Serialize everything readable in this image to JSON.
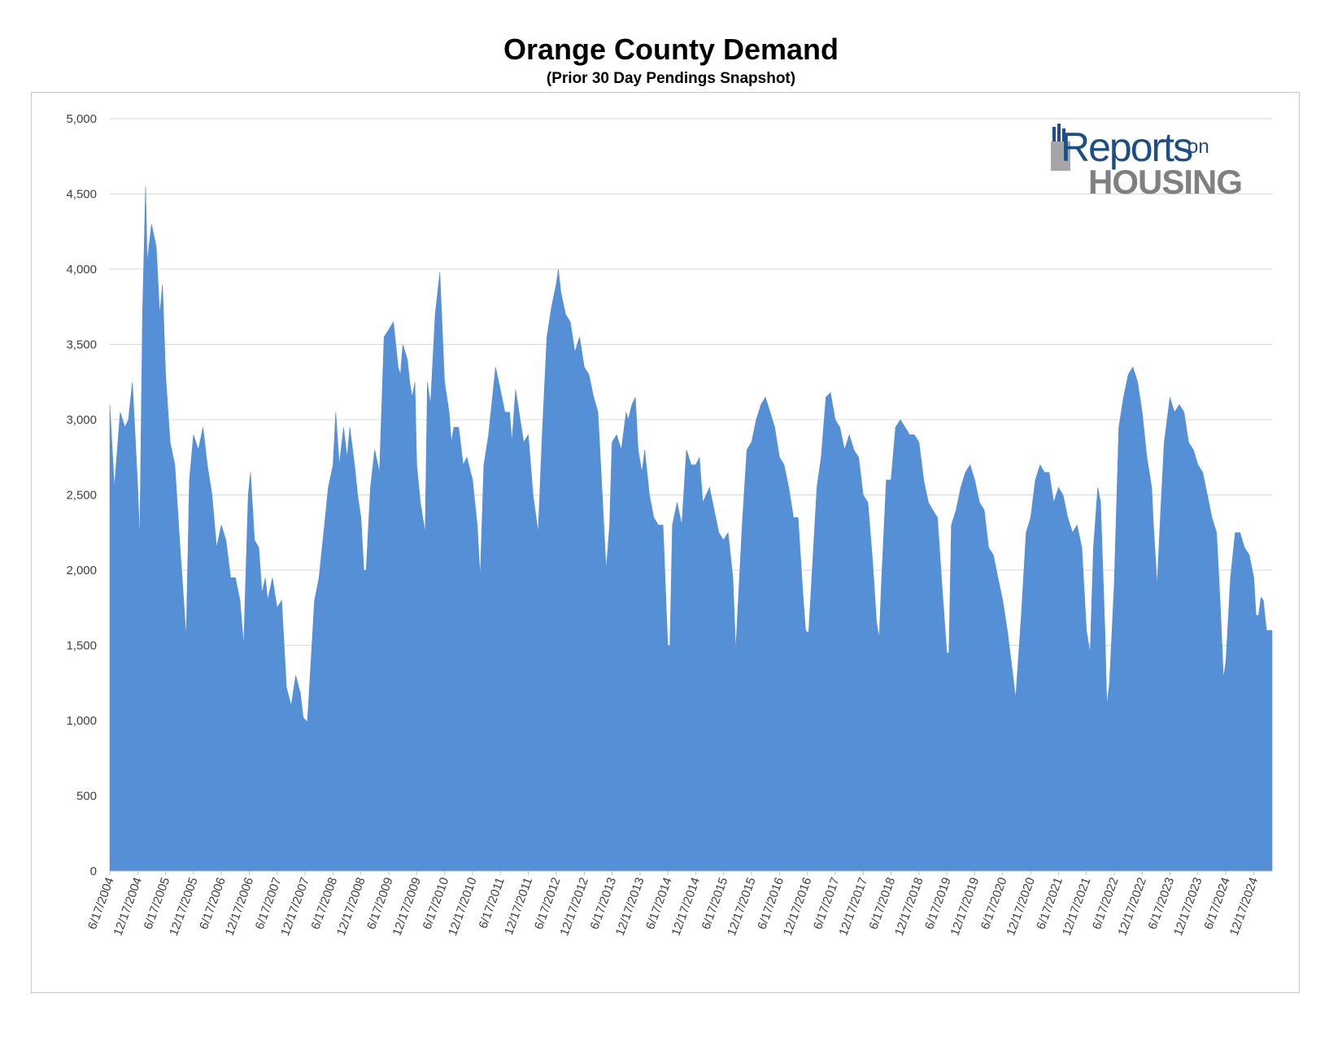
{
  "chart_data": {
    "type": "area",
    "title": "Orange County Demand",
    "subtitle": "(Prior 30 Day Pendings Snapshot)",
    "ylim": [
      0,
      5000
    ],
    "y_ticks": [
      0,
      500,
      1000,
      1500,
      2000,
      2500,
      3000,
      3500,
      4000,
      4500,
      5000
    ],
    "y_tick_labels": [
      "0",
      "500",
      "1,000",
      "1,500",
      "2,000",
      "2,500",
      "3,000",
      "3,500",
      "4,000",
      "4,500",
      "5,000"
    ],
    "x_tick_labels": [
      "6/17/2004",
      "12/17/2004",
      "6/17/2005",
      "12/17/2005",
      "6/17/2006",
      "12/17/2006",
      "6/17/2007",
      "12/17/2007",
      "6/17/2008",
      "12/17/2008",
      "6/17/2009",
      "12/17/2009",
      "6/17/2010",
      "12/17/2010",
      "6/17/2011",
      "12/17/2011",
      "6/17/2012",
      "12/17/2012",
      "6/17/2013",
      "12/17/2013",
      "6/17/2014",
      "12/17/2014",
      "6/17/2015",
      "12/17/2015",
      "6/17/2016",
      "12/17/2016",
      "6/17/2017",
      "12/17/2017",
      "6/17/2018",
      "12/17/2018",
      "6/17/2019",
      "12/17/2019",
      "6/17/2020",
      "12/17/2020",
      "6/17/2021",
      "12/17/2021",
      "6/17/2022",
      "12/17/2022",
      "6/17/2023",
      "12/17/2023",
      "6/17/2024",
      "12/17/2024"
    ],
    "x_start": "2004-06-17",
    "x_end": "2025-04-15",
    "grid": true,
    "fill_color": "#5590d6",
    "points": [
      [
        "2004-06-17",
        3100
      ],
      [
        "2004-07-17",
        2550
      ],
      [
        "2004-08-24",
        3050
      ],
      [
        "2004-09-24",
        2950
      ],
      [
        "2004-10-17",
        3000
      ],
      [
        "2004-11-12",
        3250
      ],
      [
        "2004-12-17",
        2550
      ],
      [
        "2004-12-30",
        2200
      ],
      [
        "2005-01-17",
        3700
      ],
      [
        "2005-02-06",
        4550
      ],
      [
        "2005-02-17",
        4050
      ],
      [
        "2005-03-17",
        4300
      ],
      [
        "2005-04-17",
        4150
      ],
      [
        "2005-05-10",
        3700
      ],
      [
        "2005-05-28",
        3900
      ],
      [
        "2005-06-17",
        3300
      ],
      [
        "2005-07-17",
        2850
      ],
      [
        "2005-08-17",
        2700
      ],
      [
        "2005-09-17",
        2200
      ],
      [
        "2005-10-17",
        1750
      ],
      [
        "2005-10-30",
        1550
      ],
      [
        "2005-11-20",
        2600
      ],
      [
        "2005-12-17",
        2900
      ],
      [
        "2006-01-17",
        2800
      ],
      [
        "2006-02-17",
        2950
      ],
      [
        "2006-03-17",
        2700
      ],
      [
        "2006-04-17",
        2500
      ],
      [
        "2006-05-17",
        2150
      ],
      [
        "2006-06-17",
        2300
      ],
      [
        "2006-07-17",
        2200
      ],
      [
        "2006-08-17",
        1950
      ],
      [
        "2006-09-17",
        1950
      ],
      [
        "2006-10-17",
        1800
      ],
      [
        "2006-11-10",
        1500
      ],
      [
        "2006-12-10",
        2500
      ],
      [
        "2006-12-25",
        2650
      ],
      [
        "2007-01-20",
        2200
      ],
      [
        "2007-02-17",
        2150
      ],
      [
        "2007-03-10",
        1850
      ],
      [
        "2007-04-01",
        1950
      ],
      [
        "2007-04-17",
        1800
      ],
      [
        "2007-05-17",
        1950
      ],
      [
        "2007-06-17",
        1750
      ],
      [
        "2007-07-17",
        1800
      ],
      [
        "2007-08-17",
        1220
      ],
      [
        "2007-09-17",
        1100
      ],
      [
        "2007-10-17",
        1300
      ],
      [
        "2007-11-17",
        1180
      ],
      [
        "2007-12-05",
        1020
      ],
      [
        "2008-01-01",
        990
      ],
      [
        "2008-01-25",
        1400
      ],
      [
        "2008-02-17",
        1800
      ],
      [
        "2008-03-17",
        1950
      ],
      [
        "2008-04-17",
        2250
      ],
      [
        "2008-05-17",
        2550
      ],
      [
        "2008-06-17",
        2700
      ],
      [
        "2008-07-05",
        3050
      ],
      [
        "2008-07-28",
        2700
      ],
      [
        "2008-08-25",
        2950
      ],
      [
        "2008-09-17",
        2750
      ],
      [
        "2008-10-05",
        2950
      ],
      [
        "2008-11-05",
        2700
      ],
      [
        "2008-11-25",
        2500
      ],
      [
        "2008-12-17",
        2350
      ],
      [
        "2009-01-05",
        2000
      ],
      [
        "2009-01-20",
        2000
      ],
      [
        "2009-02-17",
        2550
      ],
      [
        "2009-03-17",
        2800
      ],
      [
        "2009-04-17",
        2650
      ],
      [
        "2009-05-17",
        3550
      ],
      [
        "2009-06-17",
        3600
      ],
      [
        "2009-07-17",
        3650
      ],
      [
        "2009-08-17",
        3350
      ],
      [
        "2009-09-01",
        3300
      ],
      [
        "2009-09-17",
        3500
      ],
      [
        "2009-10-17",
        3400
      ],
      [
        "2009-11-01",
        3250
      ],
      [
        "2009-11-17",
        3150
      ],
      [
        "2009-12-05",
        3250
      ],
      [
        "2009-12-17",
        2700
      ],
      [
        "2010-01-10",
        2450
      ],
      [
        "2010-02-10",
        2250
      ],
      [
        "2010-02-25",
        3250
      ],
      [
        "2010-03-17",
        3100
      ],
      [
        "2010-04-17",
        3700
      ],
      [
        "2010-05-17",
        3980
      ],
      [
        "2010-06-17",
        3250
      ],
      [
        "2010-07-17",
        3050
      ],
      [
        "2010-08-01",
        2850
      ],
      [
        "2010-08-17",
        2950
      ],
      [
        "2010-09-17",
        2950
      ],
      [
        "2010-10-17",
        2700
      ],
      [
        "2010-11-10",
        2750
      ],
      [
        "2010-12-05",
        2650
      ],
      [
        "2010-12-17",
        2600
      ],
      [
        "2011-01-17",
        2300
      ],
      [
        "2011-02-05",
        1950
      ],
      [
        "2011-03-01",
        2700
      ],
      [
        "2011-04-01",
        2900
      ],
      [
        "2011-05-17",
        3350
      ],
      [
        "2011-06-17",
        3200
      ],
      [
        "2011-07-17",
        3050
      ],
      [
        "2011-08-17",
        3050
      ],
      [
        "2011-09-01",
        2850
      ],
      [
        "2011-09-25",
        3200
      ],
      [
        "2011-10-25",
        3000
      ],
      [
        "2011-11-17",
        2850
      ],
      [
        "2011-12-17",
        2900
      ],
      [
        "2012-01-17",
        2500
      ],
      [
        "2012-02-20",
        2250
      ],
      [
        "2012-03-17",
        2900
      ],
      [
        "2012-04-17",
        3550
      ],
      [
        "2012-05-17",
        3750
      ],
      [
        "2012-06-17",
        3900
      ],
      [
        "2012-07-01",
        4000
      ],
      [
        "2012-07-17",
        3850
      ],
      [
        "2012-08-17",
        3700
      ],
      [
        "2012-09-17",
        3650
      ],
      [
        "2012-10-17",
        3450
      ],
      [
        "2012-11-17",
        3550
      ],
      [
        "2012-12-17",
        3350
      ],
      [
        "2013-01-17",
        3300
      ],
      [
        "2013-02-17",
        3150
      ],
      [
        "2013-03-17",
        3050
      ],
      [
        "2013-04-17",
        2450
      ],
      [
        "2013-05-10",
        2000
      ],
      [
        "2013-06-01",
        2300
      ],
      [
        "2013-06-17",
        2850
      ],
      [
        "2013-07-17",
        2900
      ],
      [
        "2013-08-17",
        2800
      ],
      [
        "2013-09-17",
        3050
      ],
      [
        "2013-10-01",
        3000
      ],
      [
        "2013-10-25",
        3100
      ],
      [
        "2013-11-17",
        3150
      ],
      [
        "2013-12-05",
        2800
      ],
      [
        "2013-12-30",
        2650
      ],
      [
        "2014-01-17",
        2800
      ],
      [
        "2014-02-17",
        2500
      ],
      [
        "2014-03-17",
        2350
      ],
      [
        "2014-04-17",
        2300
      ],
      [
        "2014-05-17",
        2300
      ],
      [
        "2014-06-17",
        1500
      ],
      [
        "2014-07-01",
        1500
      ],
      [
        "2014-07-17",
        2300
      ],
      [
        "2014-08-17",
        2450
      ],
      [
        "2014-09-17",
        2300
      ],
      [
        "2014-10-17",
        2800
      ],
      [
        "2014-11-17",
        2700
      ],
      [
        "2014-12-17",
        2700
      ],
      [
        "2015-01-10",
        2750
      ],
      [
        "2015-02-01",
        2450
      ],
      [
        "2015-03-17",
        2550
      ],
      [
        "2015-04-17",
        2400
      ],
      [
        "2015-05-17",
        2250
      ],
      [
        "2015-06-17",
        2200
      ],
      [
        "2015-07-17",
        2250
      ],
      [
        "2015-08-17",
        1950
      ],
      [
        "2015-09-05",
        1470
      ],
      [
        "2015-10-17",
        2300
      ],
      [
        "2015-11-17",
        2800
      ],
      [
        "2015-12-17",
        2850
      ],
      [
        "2016-01-17",
        3000
      ],
      [
        "2016-02-17",
        3100
      ],
      [
        "2016-03-17",
        3150
      ],
      [
        "2016-04-17",
        3050
      ],
      [
        "2016-05-17",
        2950
      ],
      [
        "2016-06-17",
        2750
      ],
      [
        "2016-07-17",
        2700
      ],
      [
        "2016-08-17",
        2550
      ],
      [
        "2016-09-17",
        2350
      ],
      [
        "2016-10-17",
        2350
      ],
      [
        "2016-11-17",
        1850
      ],
      [
        "2016-12-05",
        1600
      ],
      [
        "2016-12-25",
        1580
      ],
      [
        "2017-01-17",
        2000
      ],
      [
        "2017-02-17",
        2550
      ],
      [
        "2017-03-17",
        2750
      ],
      [
        "2017-04-17",
        3150
      ],
      [
        "2017-05-17",
        3180
      ],
      [
        "2017-06-17",
        3000
      ],
      [
        "2017-07-17",
        2950
      ],
      [
        "2017-08-17",
        2800
      ],
      [
        "2017-09-17",
        2900
      ],
      [
        "2017-10-17",
        2800
      ],
      [
        "2017-11-17",
        2750
      ],
      [
        "2017-12-17",
        2500
      ],
      [
        "2018-01-17",
        2450
      ],
      [
        "2018-02-17",
        2050
      ],
      [
        "2018-03-15",
        1650
      ],
      [
        "2018-04-01",
        1550
      ],
      [
        "2018-04-17",
        1950
      ],
      [
        "2018-05-17",
        2600
      ],
      [
        "2018-06-17",
        2600
      ],
      [
        "2018-07-17",
        2950
      ],
      [
        "2018-08-17",
        3000
      ],
      [
        "2018-09-17",
        2950
      ],
      [
        "2018-10-17",
        2900
      ],
      [
        "2018-11-17",
        2900
      ],
      [
        "2018-12-17",
        2850
      ],
      [
        "2019-01-17",
        2600
      ],
      [
        "2019-02-17",
        2450
      ],
      [
        "2019-03-17",
        2400
      ],
      [
        "2019-04-17",
        2350
      ],
      [
        "2019-05-17",
        1900
      ],
      [
        "2019-06-17",
        1450
      ],
      [
        "2019-07-01",
        1450
      ],
      [
        "2019-07-17",
        2300
      ],
      [
        "2019-08-17",
        2400
      ],
      [
        "2019-09-17",
        2550
      ],
      [
        "2019-10-17",
        2650
      ],
      [
        "2019-11-17",
        2700
      ],
      [
        "2019-12-17",
        2600
      ],
      [
        "2020-01-17",
        2450
      ],
      [
        "2020-02-17",
        2400
      ],
      [
        "2020-03-17",
        2150
      ],
      [
        "2020-04-17",
        2100
      ],
      [
        "2020-05-17",
        1950
      ],
      [
        "2020-06-17",
        1800
      ],
      [
        "2020-07-17",
        1600
      ],
      [
        "2020-08-17",
        1350
      ],
      [
        "2020-09-10",
        1150
      ],
      [
        "2020-10-17",
        1700
      ],
      [
        "2020-11-17",
        2250
      ],
      [
        "2020-12-17",
        2350
      ],
      [
        "2021-01-17",
        2600
      ],
      [
        "2021-02-17",
        2700
      ],
      [
        "2021-03-17",
        2650
      ],
      [
        "2021-04-17",
        2650
      ],
      [
        "2021-05-17",
        2450
      ],
      [
        "2021-06-17",
        2550
      ],
      [
        "2021-07-17",
        2500
      ],
      [
        "2021-08-17",
        2350
      ],
      [
        "2021-09-17",
        2250
      ],
      [
        "2021-10-17",
        2300
      ],
      [
        "2021-11-17",
        2150
      ],
      [
        "2021-12-17",
        1600
      ],
      [
        "2022-01-10",
        1450
      ],
      [
        "2022-02-01",
        2150
      ],
      [
        "2022-03-01",
        2550
      ],
      [
        "2022-03-20",
        2450
      ],
      [
        "2022-04-17",
        1600
      ],
      [
        "2022-04-30",
        1100
      ],
      [
        "2022-05-17",
        1250
      ],
      [
        "2022-06-17",
        1900
      ],
      [
        "2022-07-17",
        2950
      ],
      [
        "2022-08-17",
        3150
      ],
      [
        "2022-09-17",
        3300
      ],
      [
        "2022-10-17",
        3350
      ],
      [
        "2022-11-17",
        3250
      ],
      [
        "2022-12-17",
        3050
      ],
      [
        "2023-01-17",
        2750
      ],
      [
        "2023-02-17",
        2550
      ],
      [
        "2023-03-01",
        2300
      ],
      [
        "2023-03-25",
        1900
      ],
      [
        "2023-04-17",
        2400
      ],
      [
        "2023-05-10",
        2850
      ],
      [
        "2023-06-17",
        3150
      ],
      [
        "2023-07-01",
        3100
      ],
      [
        "2023-07-17",
        3050
      ],
      [
        "2023-08-17",
        3100
      ],
      [
        "2023-09-17",
        3050
      ],
      [
        "2023-10-17",
        2850
      ],
      [
        "2023-11-17",
        2800
      ],
      [
        "2023-12-17",
        2700
      ],
      [
        "2024-01-17",
        2650
      ],
      [
        "2024-02-17",
        2500
      ],
      [
        "2024-03-17",
        2350
      ],
      [
        "2024-04-17",
        2250
      ],
      [
        "2024-05-10",
        1800
      ],
      [
        "2024-06-01",
        1280
      ],
      [
        "2024-06-17",
        1400
      ],
      [
        "2024-07-17",
        1950
      ],
      [
        "2024-08-17",
        2250
      ],
      [
        "2024-09-17",
        2250
      ],
      [
        "2024-10-17",
        2150
      ],
      [
        "2024-11-17",
        2100
      ],
      [
        "2024-12-17",
        1950
      ],
      [
        "2024-12-31",
        1700
      ],
      [
        "2025-01-17",
        1700
      ],
      [
        "2025-02-01",
        1820
      ],
      [
        "2025-02-17",
        1800
      ],
      [
        "2025-03-10",
        1600
      ],
      [
        "2025-04-15",
        1600
      ]
    ]
  },
  "logo": {
    "text_top": "Reports",
    "text_on": "on",
    "text_bottom": "HOUSING"
  }
}
